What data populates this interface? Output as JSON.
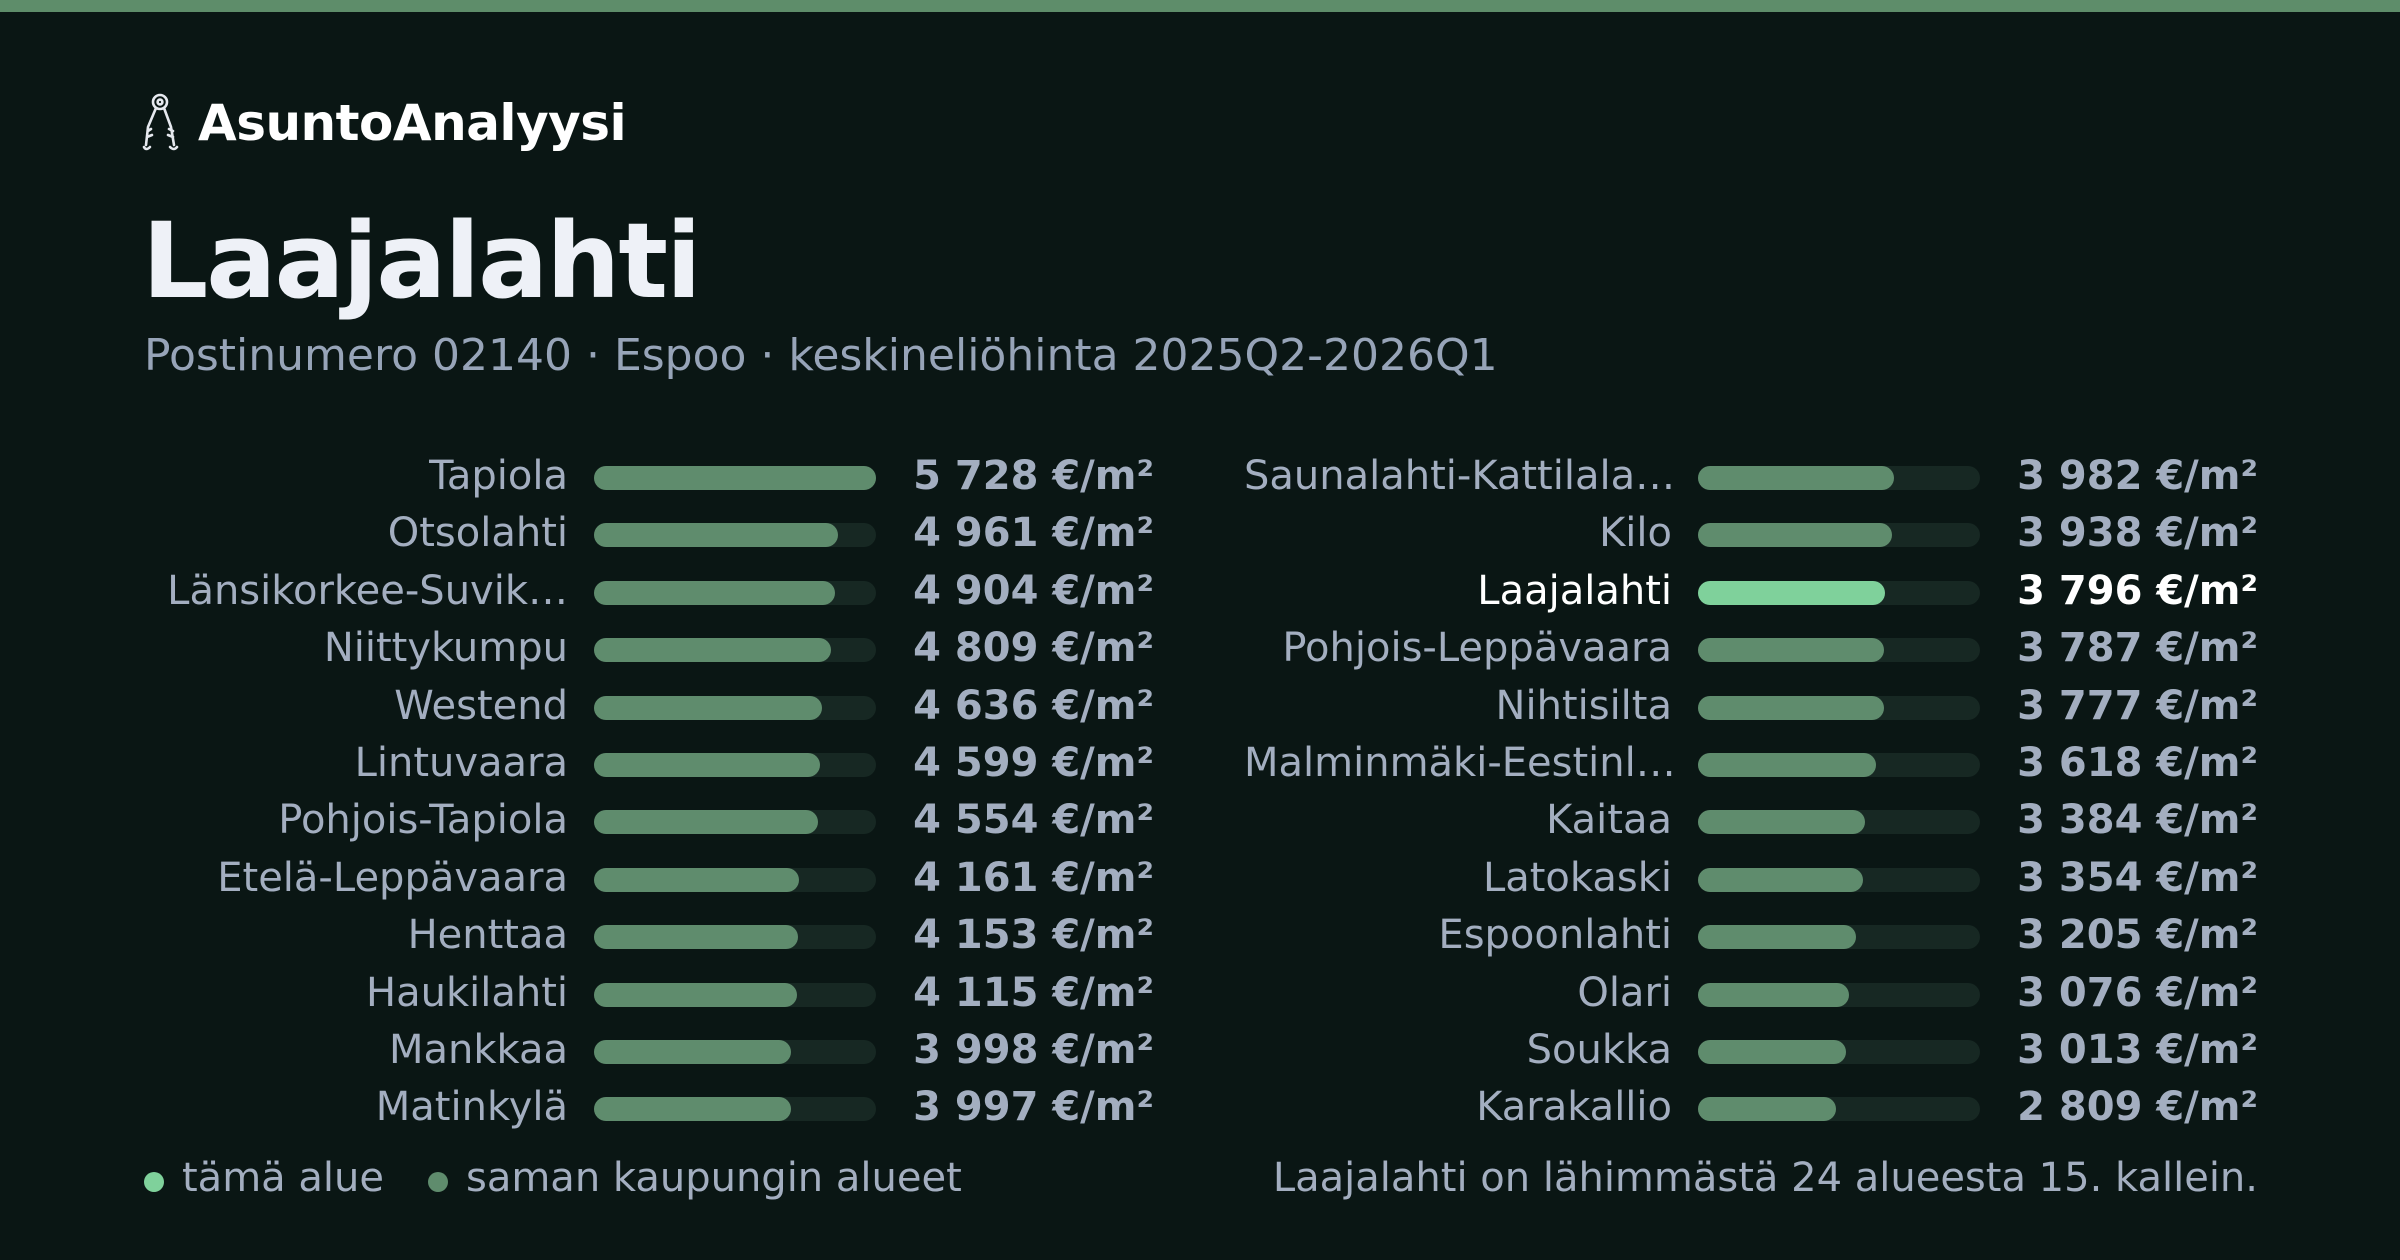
{
  "brand": {
    "name": "AsuntoAnalyysi",
    "icon": "keys-icon"
  },
  "header": {
    "title": "Laajalahti",
    "subtitle": "Postinumero 02140 · Espoo · keskineliöhinta 2025Q2-2026Q1"
  },
  "colors": {
    "background": "#0a1614",
    "accent_strip": "#5e8d6a",
    "bar": "#5f8c6d",
    "bar_highlight": "#7fd19b",
    "track": "#172823",
    "text": "#a3aec0",
    "text_highlight": "#ffffff"
  },
  "chart_data": {
    "type": "bar",
    "orientation": "horizontal",
    "unit": "€/m²",
    "highlight": "Laajalahti",
    "categories": [
      "Tapiola",
      "Otsolahti",
      "Länsikorkee-Suvik…",
      "Niittykumpu",
      "Westend",
      "Lintuvaara",
      "Pohjois-Tapiola",
      "Etelä-Leppävaara",
      "Henttaa",
      "Haukilahti",
      "Mankkaa",
      "Matinkylä",
      "Saunalahti-Kattilala…",
      "Kilo",
      "Laajalahti",
      "Pohjois-Leppävaara",
      "Nihtisilta",
      "Malminmäki-Eestinl…",
      "Kaitaa",
      "Latokaski",
      "Espoonlahti",
      "Olari",
      "Soukka",
      "Karakallio"
    ],
    "values": [
      5728,
      4961,
      4904,
      4809,
      4636,
      4599,
      4554,
      4161,
      4153,
      4115,
      3998,
      3997,
      3982,
      3938,
      3796,
      3787,
      3777,
      3618,
      3384,
      3354,
      3205,
      3076,
      3013,
      2809
    ],
    "value_labels": [
      "5 728 €/m²",
      "4 961 €/m²",
      "4 904 €/m²",
      "4 809 €/m²",
      "4 636 €/m²",
      "4 599 €/m²",
      "4 554 €/m²",
      "4 161 €/m²",
      "4 153 €/m²",
      "4 115 €/m²",
      "3 998 €/m²",
      "3 997 €/m²",
      "3 982 €/m²",
      "3 938 €/m²",
      "3 796 €/m²",
      "3 787 €/m²",
      "3 777 €/m²",
      "3 618 €/m²",
      "3 384 €/m²",
      "3 354 €/m²",
      "3 205 €/m²",
      "3 076 €/m²",
      "3 013 €/m²",
      "2 809 €/m²"
    ],
    "xlim": [
      0,
      5728
    ],
    "columns": 2,
    "rows_per_column": 12
  },
  "legend": {
    "items": [
      {
        "label": "tämä alue",
        "color": "#7fd19b"
      },
      {
        "label": "saman kaupungin alueet",
        "color": "#5f8c6d"
      }
    ]
  },
  "footnote": "Laajalahti on lähimmästä 24 alueesta 15. kallein."
}
